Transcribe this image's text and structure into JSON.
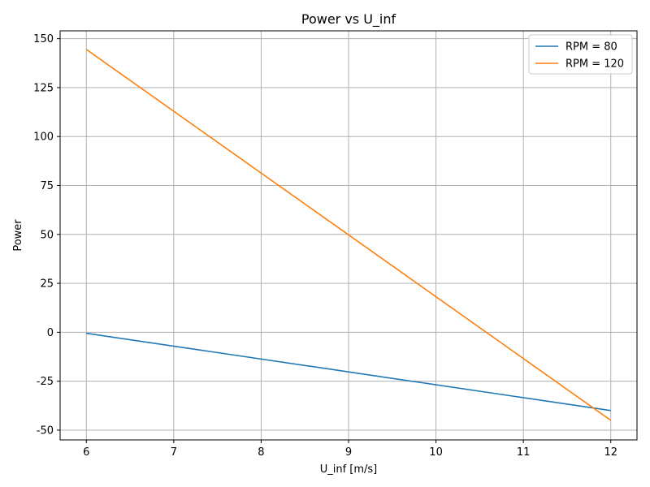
{
  "chart_data": {
    "type": "line",
    "title": "Power vs U_inf",
    "xlabel": "U_inf [m/s]",
    "ylabel": "Power",
    "xlim": [
      5.7,
      12.3
    ],
    "ylim": [
      -55,
      154
    ],
    "xticks": [
      6,
      7,
      8,
      9,
      10,
      11,
      12
    ],
    "yticks": [
      -50,
      -25,
      0,
      25,
      50,
      75,
      100,
      125,
      150
    ],
    "grid": true,
    "legend_position": "top-right",
    "series": [
      {
        "name": "RPM = 80",
        "color": "#1f77b4",
        "x": [
          6,
          12
        ],
        "y": [
          -0.5,
          -40
        ]
      },
      {
        "name": "RPM = 120",
        "color": "#ff7f0e",
        "x": [
          6,
          12
        ],
        "y": [
          144.5,
          -45
        ]
      }
    ]
  }
}
